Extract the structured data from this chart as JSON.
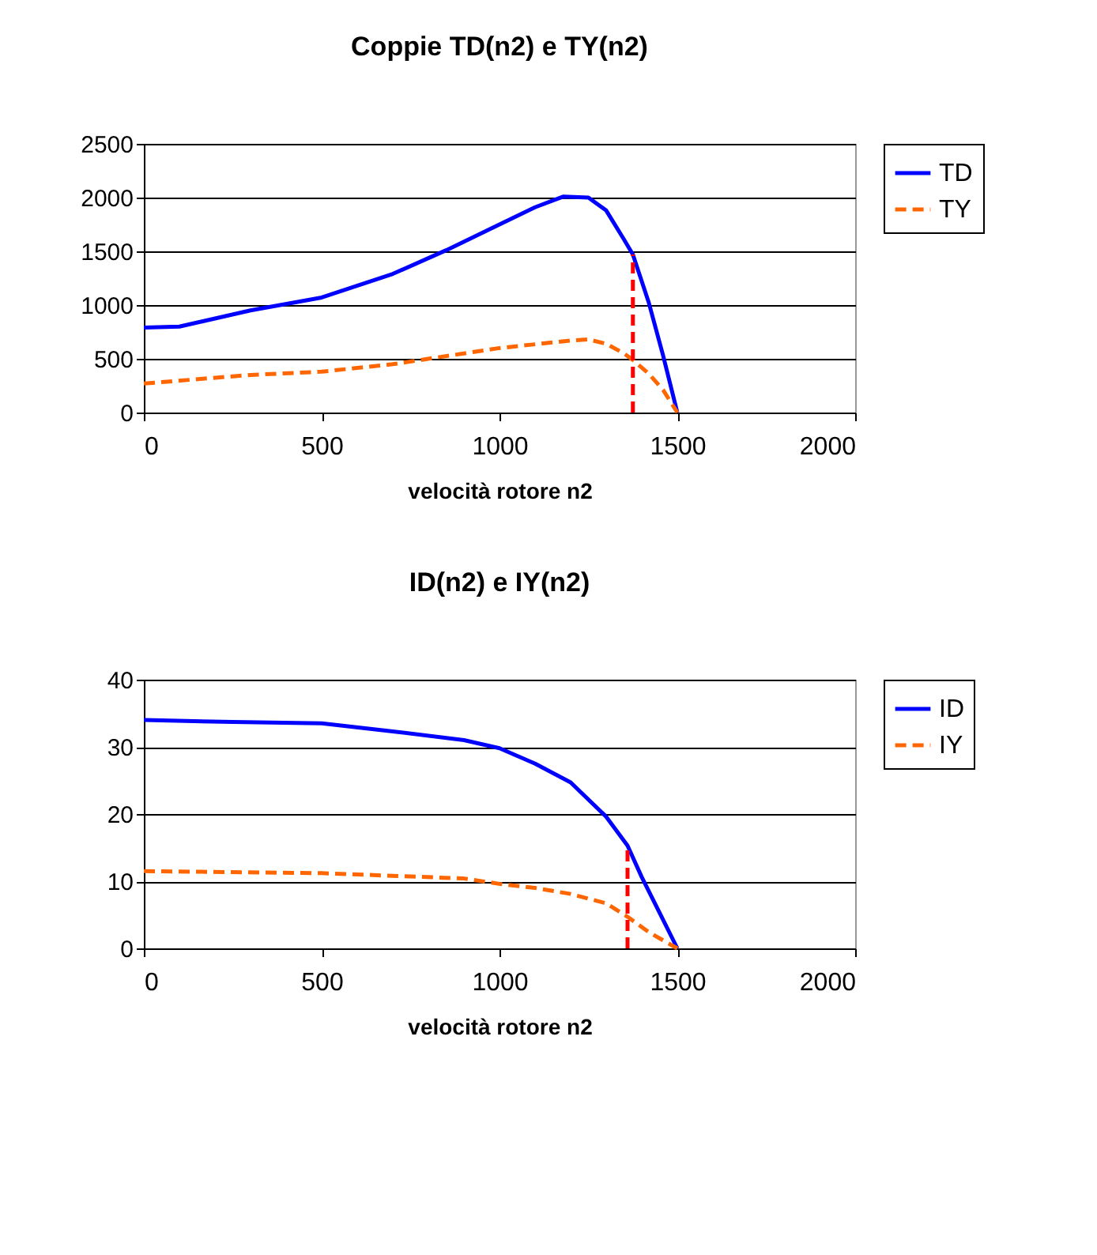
{
  "chart_data": [
    {
      "type": "line",
      "title": "Coppie TD(n2) e TY(n2)",
      "xlabel": "velocità rotore n2",
      "xlim": [
        0,
        2000
      ],
      "xticks": [
        0,
        500,
        1000,
        1500,
        2000
      ],
      "ylim": [
        0,
        2500
      ],
      "yticks": [
        0,
        500,
        1000,
        1500,
        2000,
        2500
      ],
      "grid": "y",
      "legend": "right",
      "marker": "none",
      "series": [
        {
          "name": "TD",
          "color": "#0000ff",
          "line_style": "solid",
          "x": [
            0,
            100,
            300,
            500,
            700,
            850,
            1000,
            1100,
            1180,
            1250,
            1300,
            1350,
            1375,
            1420,
            1460,
            1500
          ],
          "values": [
            790,
            800,
            950,
            1070,
            1290,
            1510,
            1750,
            1910,
            2010,
            2000,
            1880,
            1610,
            1470,
            1020,
            530,
            0
          ]
        },
        {
          "name": "TY",
          "color": "#ff6600",
          "line_style": "dashed",
          "x": [
            0,
            300,
            500,
            700,
            900,
            1000,
            1200,
            1250,
            1300,
            1350,
            1375,
            1420,
            1460,
            1500
          ],
          "values": [
            270,
            350,
            380,
            450,
            550,
            600,
            670,
            680,
            640,
            550,
            490,
            360,
            210,
            0
          ]
        },
        {
          "color": "#ff0000",
          "line_style": "dashed",
          "x": [
            1375,
            1375
          ],
          "values": [
            0,
            1470
          ]
        }
      ]
    },
    {
      "type": "line",
      "title": "ID(n2) e IY(n2)",
      "xlabel": "velocità rotore n2",
      "xlim": [
        0,
        2000
      ],
      "xticks": [
        0,
        500,
        1000,
        1500,
        2000
      ],
      "ylim": [
        0,
        40
      ],
      "yticks": [
        0,
        10,
        20,
        30,
        40
      ],
      "grid": "y",
      "legend": "right",
      "marker": "none",
      "series": [
        {
          "name": "ID",
          "color": "#0000ff",
          "line_style": "solid",
          "x": [
            0,
            250,
            500,
            700,
            900,
            1000,
            1100,
            1200,
            1300,
            1360,
            1400,
            1450,
            1500
          ],
          "values": [
            34,
            33.7,
            33.5,
            32.3,
            31,
            29.8,
            27.5,
            24.7,
            19.6,
            15.3,
            10.6,
            5.3,
            0
          ]
        },
        {
          "name": "IY",
          "color": "#ff6600",
          "line_style": "dashed",
          "x": [
            0,
            500,
            900,
            1000,
            1100,
            1200,
            1300,
            1360,
            1420,
            1500
          ],
          "values": [
            11.5,
            11.2,
            10.4,
            9.6,
            9,
            8.1,
            6.7,
            4.7,
            2.4,
            0
          ]
        },
        {
          "color": "#ff0000",
          "line_style": "dashed",
          "x": [
            1360,
            1360
          ],
          "values": [
            0,
            15.3
          ]
        }
      ]
    }
  ]
}
